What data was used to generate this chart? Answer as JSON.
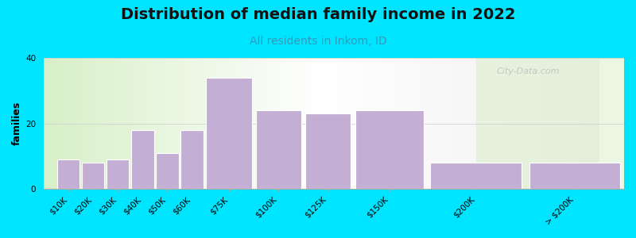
{
  "title": "Distribution of median family income in 2022",
  "subtitle": "All residents in Inkom, ID",
  "ylabel": "families",
  "categories": [
    "$10K",
    "$20K",
    "$30K",
    "$40K",
    "$50K",
    "$60K",
    "$75K",
    "$100K",
    "$125K",
    "$150K",
    "$200K",
    "> $200K"
  ],
  "values": [
    9,
    8,
    9,
    18,
    11,
    18,
    34,
    24,
    23,
    24,
    8,
    8
  ],
  "bar_color": "#c4afd4",
  "bar_edge_color": "#ffffff",
  "ylim": [
    0,
    40
  ],
  "yticks": [
    0,
    20,
    40
  ],
  "background_outer": "#00e5ff",
  "bg_left_color": "#d8efc8",
  "bg_right_color": "#f0f0f0",
  "title_fontsize": 14,
  "subtitle_fontsize": 10,
  "subtitle_color": "#3399bb",
  "ylabel_fontsize": 9,
  "tick_fontsize": 7.5,
  "watermark": "City-Data.com",
  "bar_positions": [
    0,
    1,
    2,
    3,
    4,
    5,
    6,
    8,
    10,
    12,
    15,
    19
  ],
  "bar_widths": [
    1,
    1,
    1,
    1,
    1,
    1,
    2,
    2,
    2,
    3,
    4,
    4
  ]
}
